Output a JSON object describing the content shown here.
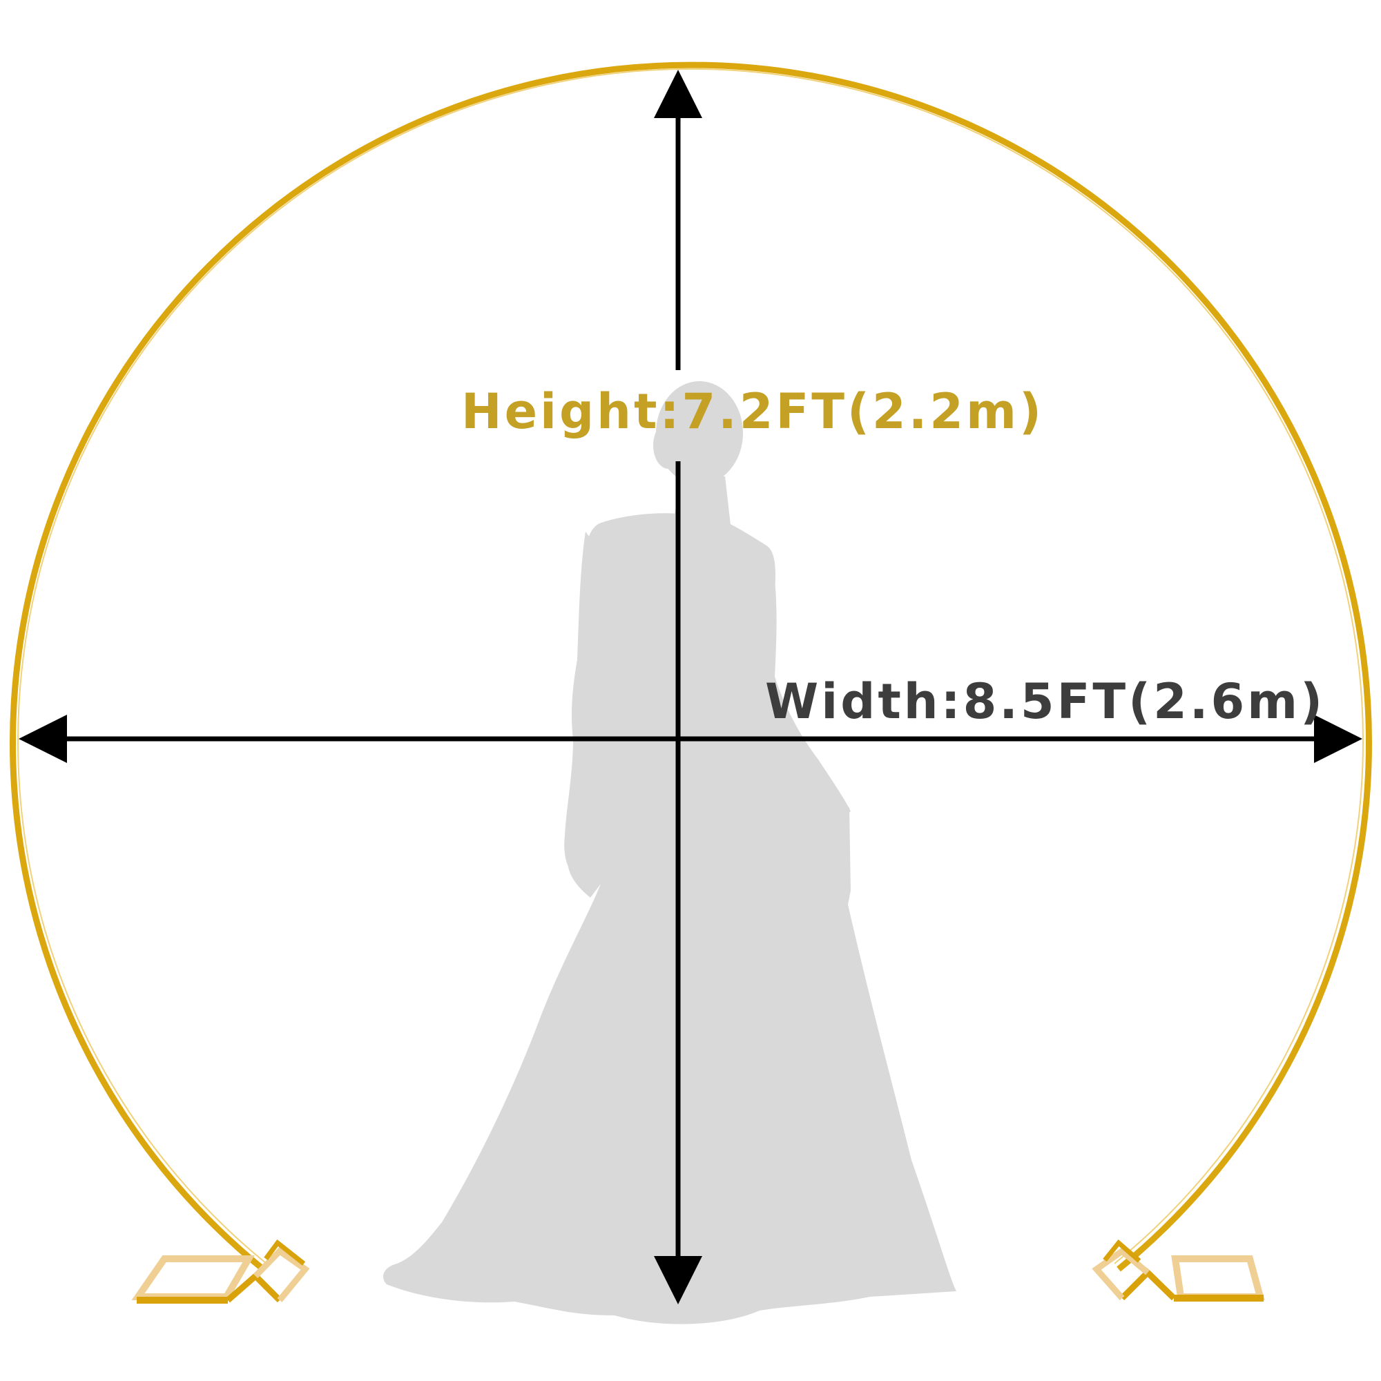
{
  "height_label": "Height:7.2FT(2.2m)",
  "width_label": "Width:8.5FT(2.6m)",
  "colors": {
    "arch_gold": "#dba70f",
    "arch_highlight": "#f1d27a",
    "height_text": "#c4a024",
    "width_text": "#3d3d3d",
    "arrow": "#000000",
    "silhouette": "#d9d9d9",
    "base_light": "#efcf93",
    "base_dark": "#d9a20b"
  },
  "icons": {
    "figure": "bride-silhouette-icon",
    "base": "square-base-icon"
  }
}
